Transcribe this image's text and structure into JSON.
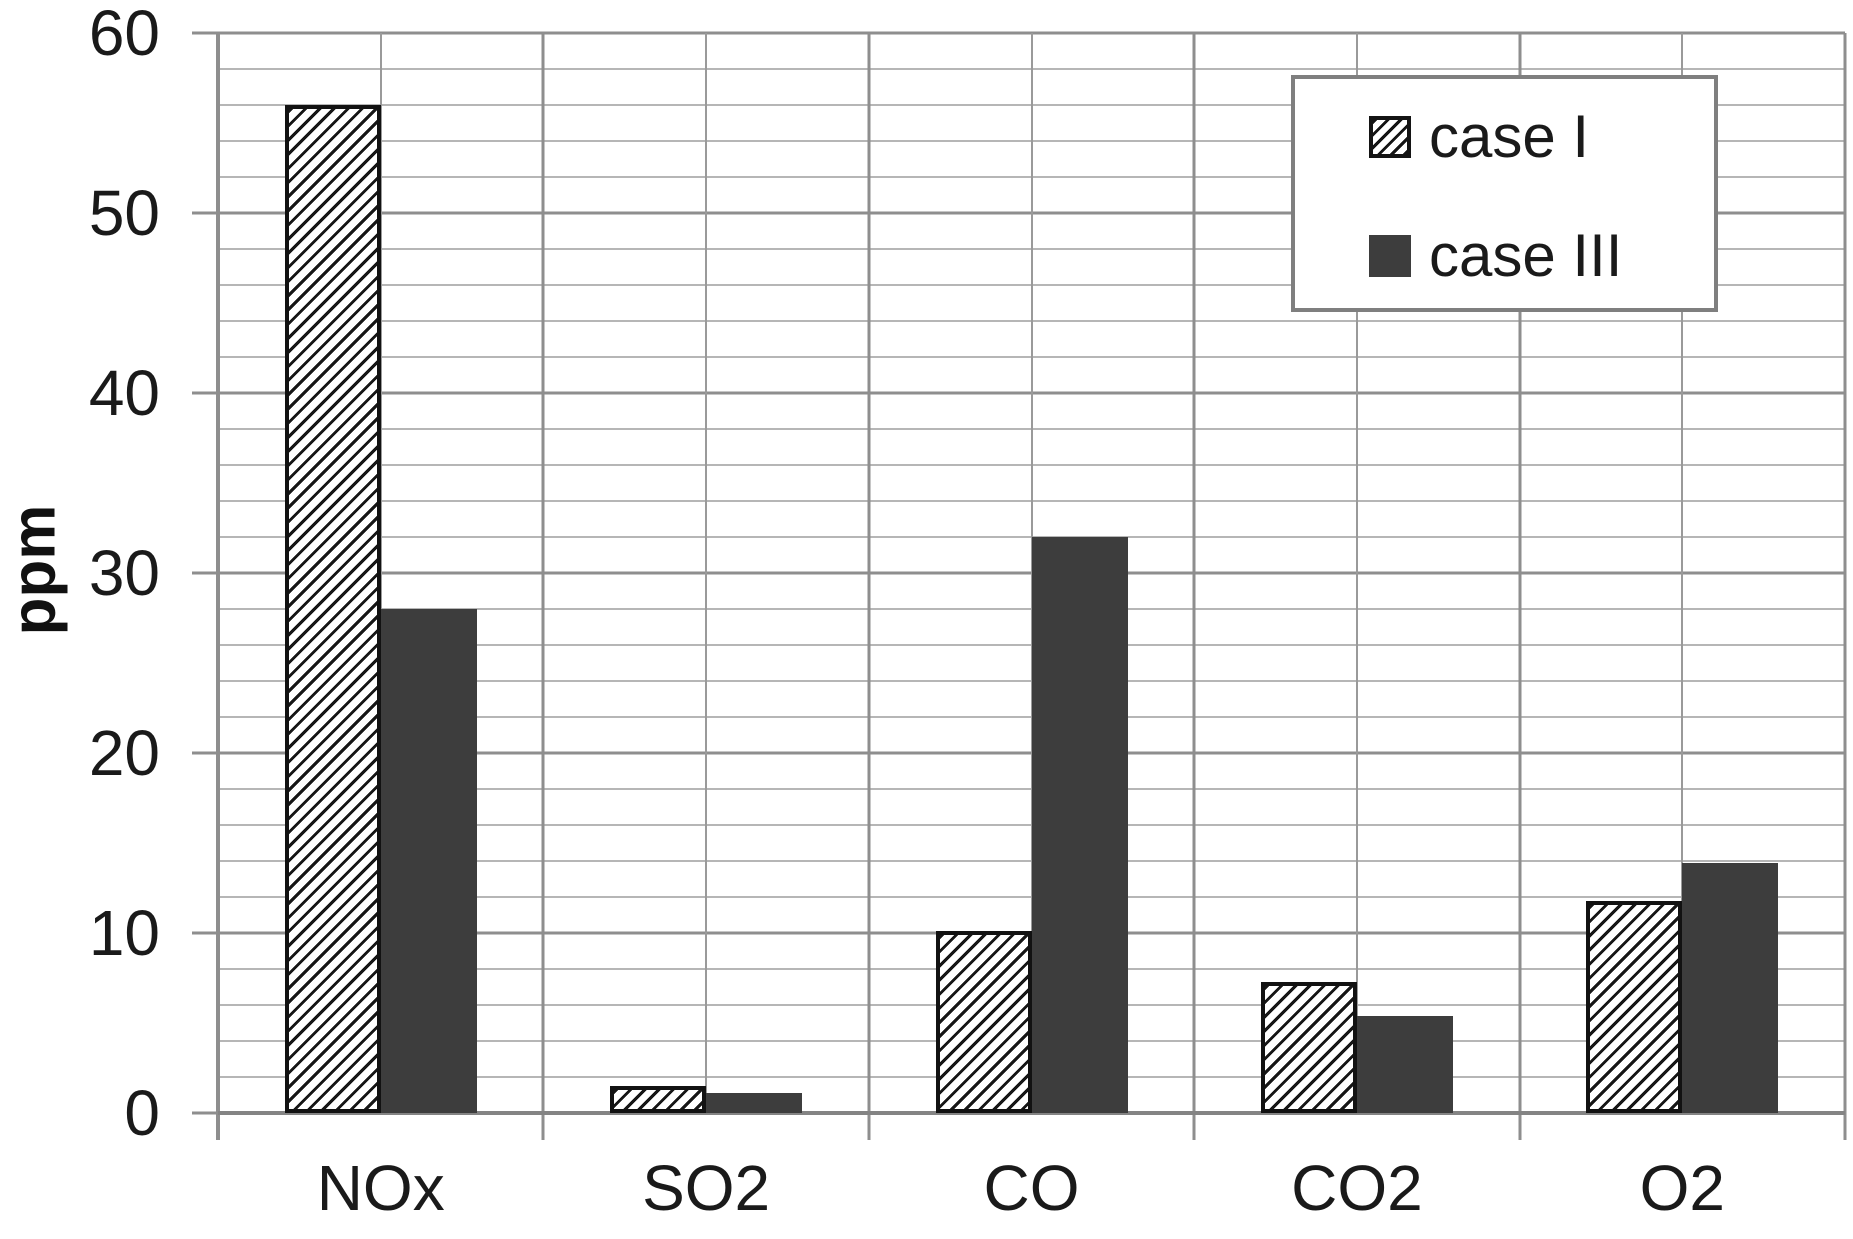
{
  "chart_data": {
    "type": "bar",
    "title": "",
    "xlabel": "",
    "ylabel": "ppm",
    "categories": [
      "NOx",
      "SO2",
      "CO",
      "CO2",
      "O2"
    ],
    "series": [
      {
        "name": "case I",
        "style": "hatched",
        "color": "#ffffff",
        "pattern": "black-diagonal-hatch",
        "values": [
          56,
          1.5,
          10.1,
          7.3,
          11.8
        ]
      },
      {
        "name": "case III",
        "style": "solid",
        "color": "#3d3d3d",
        "pattern": "none",
        "values": [
          28,
          1.1,
          32,
          5.4,
          13.9
        ]
      }
    ],
    "ylim": [
      0,
      60
    ],
    "yticks": [
      0,
      10,
      20,
      30,
      40,
      50,
      60
    ],
    "y_major_step": 10,
    "y_minor_step": 2,
    "grid": "major-and-minor-horizontal-with-vertical-category-lines",
    "legend_position": "top-right"
  },
  "colors": {
    "background": "#ffffff",
    "major_gridline": "#8e8e8e",
    "minor_gridline": "#b6b6b6",
    "axis_line": "#848484",
    "bar_solid": "#3d3d3d",
    "bar_hatch": "#161616",
    "legend_border": "#7f7f7f",
    "text": "#1a1a1a"
  }
}
